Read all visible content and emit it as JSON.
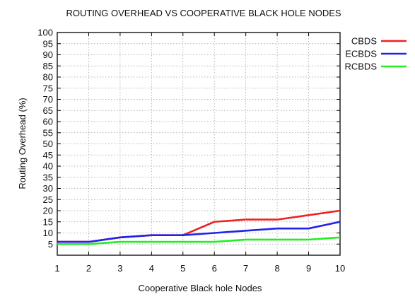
{
  "chart_data": {
    "type": "line",
    "title": "ROUTING OVERHEAD VS COOPERATIVE BLACK HOLE NODES",
    "xlabel": "Cooperative Black hole Nodes",
    "ylabel": "Routing Overhead (%)",
    "x": [
      1,
      2,
      3,
      4,
      5,
      6,
      7,
      8,
      9,
      10
    ],
    "x_ticks": [
      "1",
      "2",
      "3",
      "4",
      "5",
      "6",
      "7",
      "8",
      "9",
      "10"
    ],
    "y_ticks": [
      "5",
      "10",
      "15",
      "20",
      "25",
      "30",
      "35",
      "40",
      "45",
      "50",
      "55",
      "60",
      "65",
      "70",
      "75",
      "80",
      "85",
      "90",
      "95",
      "100"
    ],
    "xlim": [
      1,
      10
    ],
    "ylim": [
      0,
      100
    ],
    "grid": true,
    "legend_position": "outside-right-top",
    "series": [
      {
        "name": "CBDS",
        "color": "#ee2222",
        "values": [
          6,
          6,
          8,
          9,
          9,
          15,
          16,
          16,
          18,
          20
        ]
      },
      {
        "name": "ECBDS",
        "color": "#2222ee",
        "values": [
          6,
          6,
          8,
          9,
          9,
          10,
          11,
          12,
          12,
          15
        ]
      },
      {
        "name": "RCBDS",
        "color": "#22ee22",
        "values": [
          5,
          5,
          6,
          6,
          6,
          6,
          7,
          7,
          7,
          8
        ]
      }
    ]
  }
}
